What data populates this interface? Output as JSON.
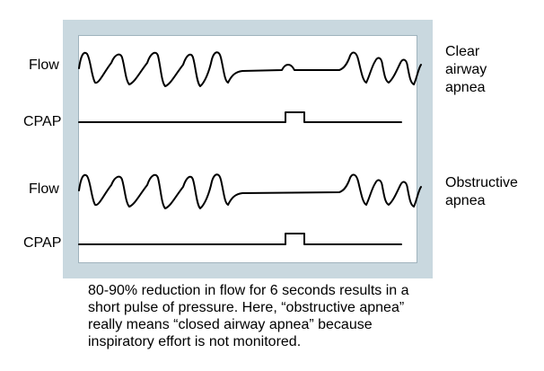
{
  "rows": {
    "flow_top": "Flow",
    "cpap_top": "CPAP",
    "flow_bottom": "Flow",
    "cpap_bottom": "CPAP"
  },
  "annotations": {
    "clear_airway": [
      "Clear",
      "airway",
      "apnea"
    ],
    "obstructive": [
      "Obstructive",
      "apnea"
    ]
  },
  "caption": [
    "80-90% reduction in flow for 6 seconds results in a",
    "short pulse of pressure. Here, “obstructive apnea”",
    "really means “closed airway apnea” because",
    "inspiratory effort is not monitored."
  ]
}
